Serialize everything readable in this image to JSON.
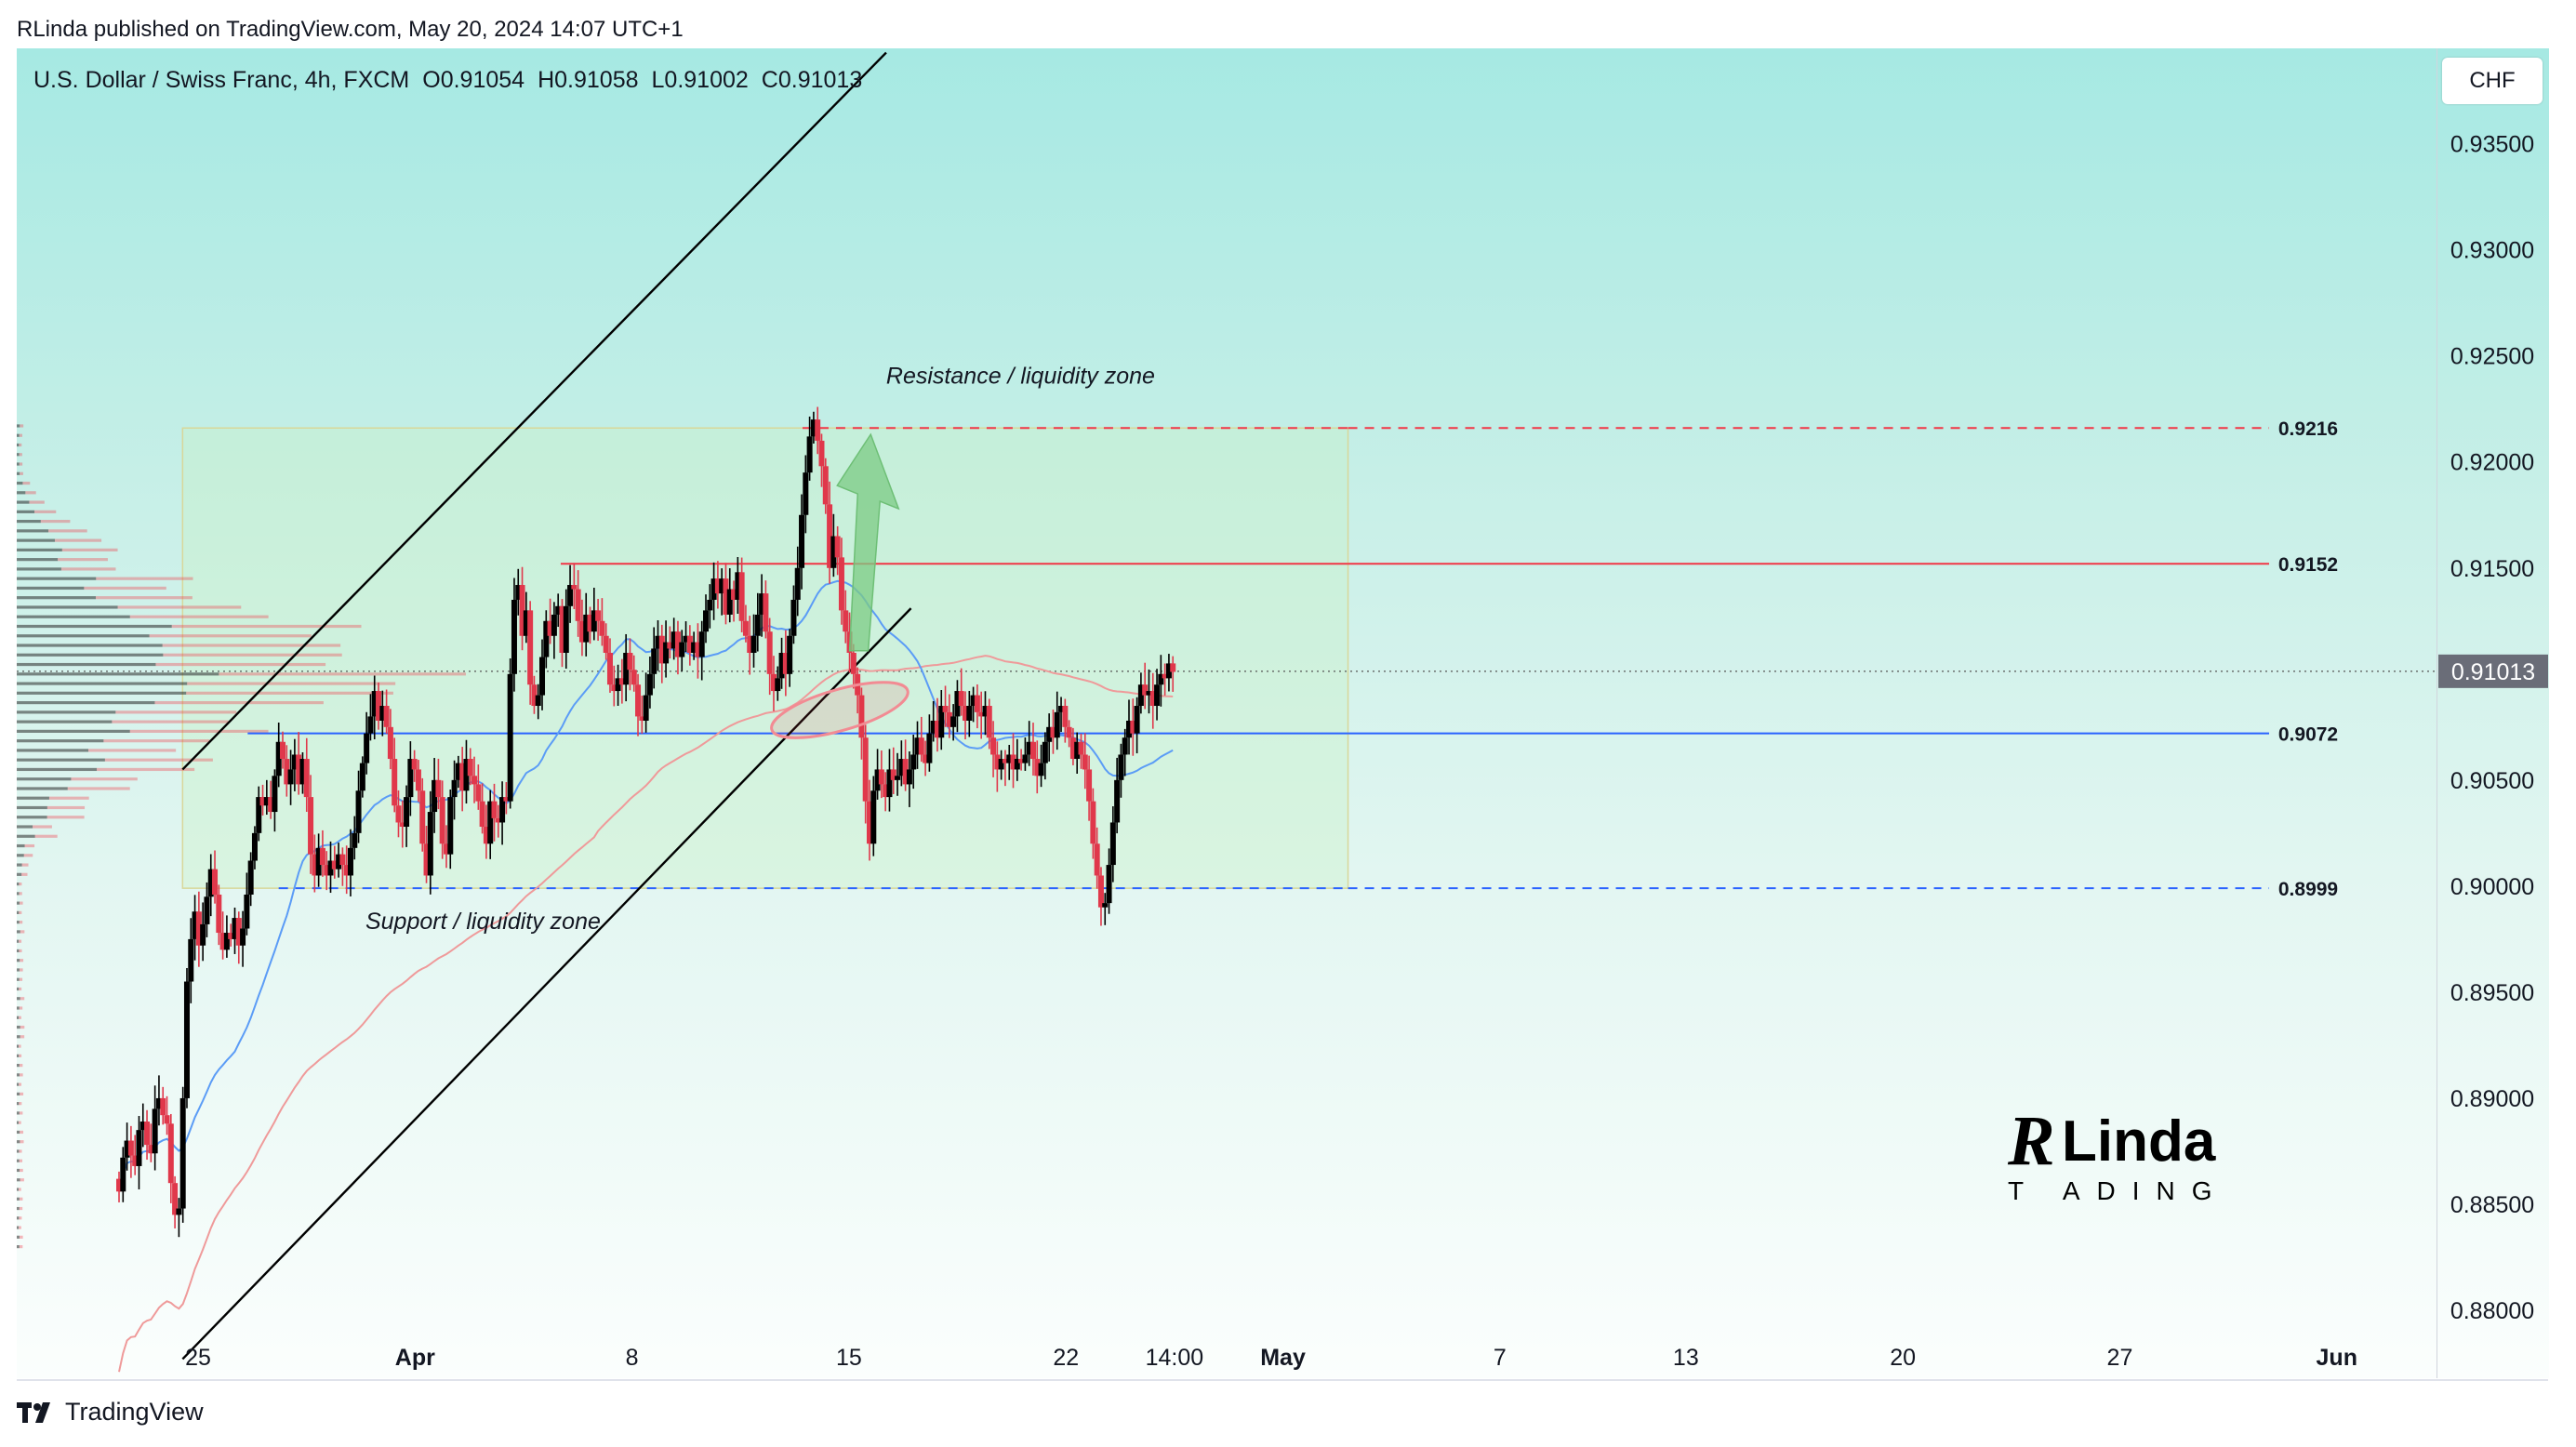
{
  "header": {
    "published_by": "RLinda published on TradingView.com, May 20, 2024 14:07 UTC+1"
  },
  "symbol_bar": {
    "instrument": "U.S. Dollar / Swiss Franc, 4h, FXCM",
    "open": "O0.91054",
    "high": "H0.91058",
    "low": "L0.91002",
    "close": "C0.91013"
  },
  "currency_button": "CHF",
  "footer": {
    "brand": "TradingView",
    "icon": "tradingview-logo-icon"
  },
  "watermark": {
    "brand_text": "RLinda TRADING",
    "icon": "rlinda-logo-icon"
  },
  "colors": {
    "bull": "#089981",
    "bear": "#f23645",
    "candle_down": "#e0384b",
    "candle_up": "#000000",
    "ma_fast": "#5b9cf6",
    "ma_slow": "#ef9a9a",
    "channel": "#000000",
    "level_blue": "#2962ff",
    "level_red": "#f23645",
    "arrow": "#7ccb84"
  },
  "chart_data": {
    "type": "candlestick",
    "symbol": "U.S. Dollar / Swiss Franc",
    "timeframe": "4h",
    "ylim": [
      0.8768,
      0.9395
    ],
    "y_ticks": [
      "0.93500",
      "0.93000",
      "0.92500",
      "0.92000",
      "0.91500",
      "0.91000",
      "0.90500",
      "0.90000",
      "0.89500",
      "0.89000",
      "0.88500",
      "0.88000"
    ],
    "x_ticks": [
      "25",
      "Apr",
      "8",
      "15",
      "22",
      "14:00",
      "May",
      "7",
      "13",
      "20",
      "27",
      "Jun"
    ],
    "last_price_label": "0.91013",
    "last_price": 0.91013,
    "levels": [
      {
        "label": "0.9216",
        "value": 0.9216,
        "style": "dashed",
        "color": "red"
      },
      {
        "label": "0.9152",
        "value": 0.9152,
        "style": "solid",
        "color": "red"
      },
      {
        "label": "0.9072",
        "value": 0.9072,
        "style": "solid",
        "color": "blue"
      },
      {
        "label": "0.8999",
        "value": 0.8999,
        "style": "dashed",
        "color": "blue"
      }
    ],
    "annotations": {
      "resistance": "Resistance / liquidity zone",
      "support": "Support / liquidity zone"
    },
    "zone": {
      "top": 0.9216,
      "bottom": 0.8999
    },
    "channel": {
      "upper": [
        [
          -0.5,
          0.9055
        ],
        [
          22.2,
          0.9393
        ]
      ],
      "lower": [
        [
          -0.5,
          0.8777
        ],
        [
          23.0,
          0.9131
        ]
      ]
    },
    "projection_arrow": {
      "from": [
        21.2,
        0.9111
      ],
      "to": [
        21.7,
        0.9213
      ]
    },
    "closes": [
      0.8856,
      0.8872,
      0.888,
      0.8873,
      0.8868,
      0.8885,
      0.8889,
      0.8878,
      0.8874,
      0.8895,
      0.89,
      0.8892,
      0.8888,
      0.886,
      0.8845,
      0.8848,
      0.89,
      0.8955,
      0.8975,
      0.8988,
      0.8972,
      0.8982,
      0.8995,
      0.9008,
      0.8996,
      0.8978,
      0.897,
      0.8978,
      0.8975,
      0.8985,
      0.8972,
      0.898,
      0.8996,
      0.9012,
      0.9025,
      0.9042,
      0.9038,
      0.9042,
      0.9035,
      0.9052,
      0.9068,
      0.906,
      0.9048,
      0.9055,
      0.9062,
      0.9048,
      0.906,
      0.9042,
      0.9015,
      0.9005,
      0.9018,
      0.901,
      0.9005,
      0.9012,
      0.9008,
      0.9015,
      0.901,
      0.9005,
      0.9018,
      0.9025,
      0.9045,
      0.9058,
      0.9072,
      0.908,
      0.9092,
      0.9078,
      0.9085,
      0.9075,
      0.906,
      0.9038,
      0.903,
      0.9028,
      0.9042,
      0.906,
      0.9055,
      0.9045,
      0.902,
      0.9005,
      0.9035,
      0.905,
      0.9042,
      0.902,
      0.9015,
      0.9042,
      0.905,
      0.9058,
      0.9045,
      0.906,
      0.9052,
      0.9048,
      0.904,
      0.9028,
      0.902,
      0.904,
      0.9032,
      0.903,
      0.9042,
      0.904,
      0.91,
      0.9135,
      0.9142,
      0.9118,
      0.913,
      0.9095,
      0.9085,
      0.909,
      0.9108,
      0.9125,
      0.9118,
      0.9128,
      0.9132,
      0.911,
      0.9132,
      0.9142,
      0.914,
      0.9125,
      0.9115,
      0.9128,
      0.912,
      0.913,
      0.9125,
      0.9118,
      0.911,
      0.9095,
      0.9092,
      0.9098,
      0.9095,
      0.911,
      0.9102,
      0.9095,
      0.908,
      0.9078,
      0.909,
      0.91,
      0.9112,
      0.9118,
      0.9105,
      0.9115,
      0.9112,
      0.912,
      0.9108,
      0.9115,
      0.9118,
      0.911,
      0.9115,
      0.9108,
      0.912,
      0.913,
      0.9135,
      0.9145,
      0.9138,
      0.9145,
      0.9128,
      0.914,
      0.9135,
      0.9148,
      0.9125,
      0.9118,
      0.911,
      0.9118,
      0.9128,
      0.9138,
      0.912,
      0.91,
      0.9092,
      0.9098,
      0.911,
      0.91,
      0.9118,
      0.9135,
      0.915,
      0.9175,
      0.9195,
      0.9212,
      0.922,
      0.921,
      0.9198,
      0.918,
      0.915,
      0.9165,
      0.9155,
      0.913,
      0.912,
      0.911,
      0.91,
      0.909,
      0.907,
      0.904,
      0.902,
      0.9045,
      0.9055,
      0.9048,
      0.9042,
      0.9055,
      0.905,
      0.9052,
      0.906,
      0.9048,
      0.9055,
      0.9062,
      0.907,
      0.9062,
      0.9058,
      0.9072,
      0.9078,
      0.907,
      0.9085,
      0.9082,
      0.9075,
      0.908,
      0.9092,
      0.9085,
      0.9078,
      0.9085,
      0.909,
      0.9082,
      0.908,
      0.9085,
      0.907,
      0.9062,
      0.9055,
      0.906,
      0.9058,
      0.9062,
      0.9055,
      0.906,
      0.9058,
      0.9062,
      0.9068,
      0.906,
      0.9052,
      0.9058,
      0.9068,
      0.9075,
      0.907,
      0.9082,
      0.9085,
      0.9075,
      0.907,
      0.906,
      0.9068,
      0.9062,
      0.9055,
      0.904,
      0.902,
      0.9005,
      0.899,
      0.8992,
      0.901,
      0.903,
      0.905,
      0.9062,
      0.907,
      0.9078,
      0.9072,
      0.9085,
      0.9095,
      0.909,
      0.9092,
      0.9085,
      0.9095,
      0.91,
      0.9098,
      0.9105,
      0.9101
    ]
  }
}
